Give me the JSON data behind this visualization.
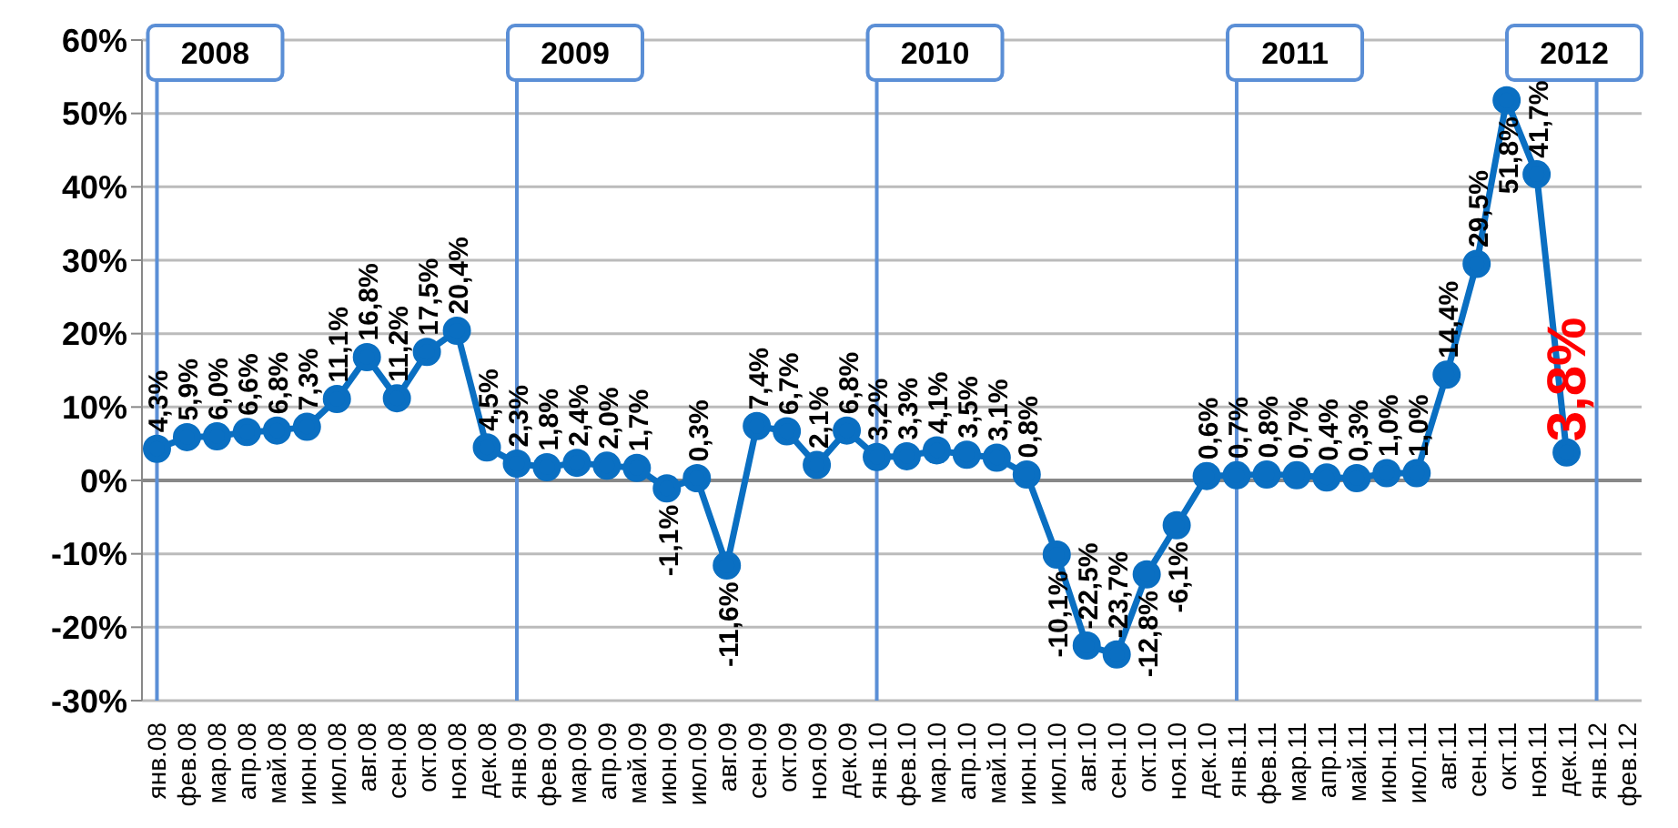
{
  "chart_data": {
    "type": "line",
    "categories": [
      "янв.08",
      "фев.08",
      "мар.08",
      "апр.08",
      "май.08",
      "июн.08",
      "июл.08",
      "авг.08",
      "сен.08",
      "окт.08",
      "ноя.08",
      "дек.08",
      "янв.09",
      "фев.09",
      "мар.09",
      "апр.09",
      "май.09",
      "июн.09",
      "июл.09",
      "авг.09",
      "сен.09",
      "окт.09",
      "ноя.09",
      "дек.09",
      "янв.10",
      "фев.10",
      "мар.10",
      "апр.10",
      "май.10",
      "июн.10",
      "июл.10",
      "авг.10",
      "сен.10",
      "окт.10",
      "ноя.10",
      "дек.10",
      "янв.11",
      "фев.11",
      "мар.11",
      "апр.11",
      "май.11",
      "июн.11",
      "июл.11",
      "авг.11",
      "сен.11",
      "окт.11",
      "ноя.11",
      "дек.11",
      "янв.12",
      "фев.12"
    ],
    "series": [
      {
        "color": "#0a6fc2",
        "values": [
          4.3,
          5.9,
          6.0,
          6.6,
          6.8,
          7.3,
          11.1,
          16.8,
          11.2,
          17.5,
          20.4,
          4.5,
          2.3,
          1.8,
          2.4,
          2.0,
          1.7,
          -1.1,
          0.3,
          -11.6,
          7.4,
          6.7,
          2.1,
          6.8,
          3.2,
          3.3,
          4.1,
          3.5,
          3.1,
          0.8,
          -10.1,
          -22.5,
          -23.7,
          -12.8,
          -6.1,
          0.6,
          0.7,
          0.8,
          0.7,
          0.4,
          0.3,
          1.0,
          1.0,
          14.4,
          29.5,
          51.8,
          41.7,
          3.8,
          null,
          null
        ],
        "value_labels": [
          "4,3%",
          "5,9%",
          "6,0%",
          "6,6%",
          "6,8%",
          "7,3%",
          "11,1%",
          "16,8%",
          "11,2%",
          "17,5%",
          "20,4%",
          "4,5%",
          "2,3%",
          "1,8%",
          "2,4%",
          "2,0%",
          "1,7%",
          "-1,1%",
          "0,3%",
          "-11,6%",
          "7,4%",
          "6,7%",
          "2,1%",
          "6,8%",
          "3,2%",
          "3,3%",
          "4,1%",
          "3,5%",
          "3,1%",
          "0,8%",
          "-10,1%",
          "-22,5%",
          "-23,7%",
          "-12,8%",
          "-6,1%",
          "0,6%",
          "0,7%",
          "0,8%",
          "0,7%",
          "0,4%",
          "0,3%",
          "1,0%",
          "1,0%",
          "14,4%",
          "29,5%",
          "51,8%",
          "41,7%",
          null,
          null,
          null
        ]
      }
    ],
    "annotations": [
      {
        "text": "3,8%",
        "x": "дек.11",
        "y": 3.8
      }
    ],
    "ylim": [
      -30,
      60
    ],
    "yticks": [
      {
        "value": -30,
        "label": "-30%"
      },
      {
        "value": -20,
        "label": "-20%"
      },
      {
        "value": -10,
        "label": "-10%"
      },
      {
        "value": 0,
        "label": "0%"
      },
      {
        "value": 10,
        "label": "10%"
      },
      {
        "value": 20,
        "label": "20%"
      },
      {
        "value": 30,
        "label": "30%"
      },
      {
        "value": 40,
        "label": "40%"
      },
      {
        "value": 50,
        "label": "50%"
      },
      {
        "value": 60,
        "label": "60%"
      }
    ],
    "ref_lines": [
      {
        "axis": "x",
        "value": "янв.08",
        "label": "2008",
        "color": "#5b8fd6"
      },
      {
        "axis": "x",
        "value": "янв.09",
        "label": "2009",
        "color": "#5b8fd6"
      },
      {
        "axis": "x",
        "value": "янв.10",
        "label": "2010",
        "color": "#5b8fd6"
      },
      {
        "axis": "x",
        "value": "янв.11",
        "label": "2011",
        "color": "#5b8fd6"
      },
      {
        "axis": "x",
        "value": "янв.12",
        "label": "2012",
        "color": "#5b8fd6"
      }
    ],
    "grid": "y",
    "marker": "circle",
    "line_style": "solid",
    "legend": false
  }
}
